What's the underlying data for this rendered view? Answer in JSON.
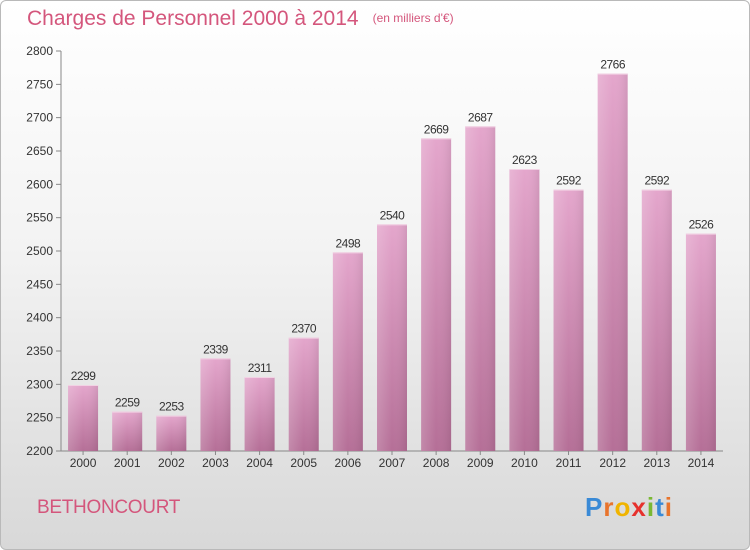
{
  "chart_data": {
    "type": "bar",
    "title": "Charges de Personnel 2000 à 2014",
    "subtitle": "(en milliers d'€)",
    "categories": [
      "2000",
      "2001",
      "2002",
      "2003",
      "2004",
      "2005",
      "2006",
      "2007",
      "2008",
      "2009",
      "2010",
      "2011",
      "2012",
      "2013",
      "2014"
    ],
    "values": [
      2299,
      2259,
      2253,
      2339,
      2311,
      2370,
      2498,
      2540,
      2669,
      2687,
      2623,
      2592,
      2766,
      2592,
      2526
    ],
    "ylim": [
      2200,
      2800
    ],
    "yticks": [
      2200,
      2250,
      2300,
      2350,
      2400,
      2450,
      2500,
      2550,
      2600,
      2650,
      2700,
      2750,
      2800
    ],
    "grid": false,
    "bar_color": "#d98fb9"
  },
  "commune": "BETHONCOURT",
  "logo": {
    "text": "Proxiti",
    "letters": [
      "P",
      "r",
      "o",
      "x",
      "i",
      "t",
      "i"
    ],
    "colors": [
      "#3a8ad6",
      "#e8742c",
      "#f0b400",
      "#e6312d",
      "#7ab833",
      "#3a8ad6",
      "#e8742c"
    ]
  }
}
